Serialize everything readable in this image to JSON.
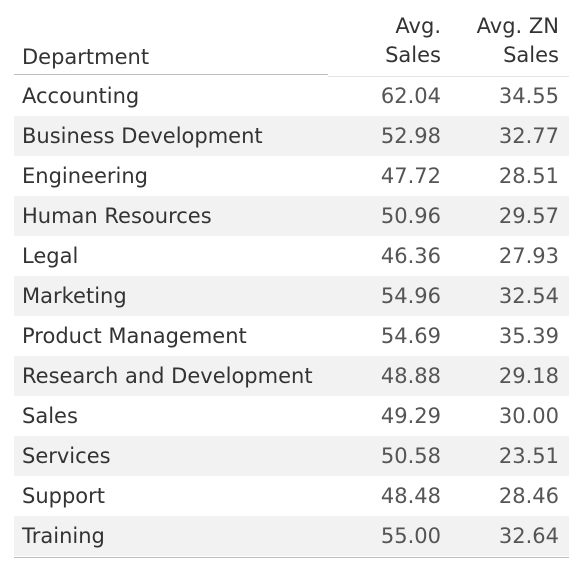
{
  "table": {
    "headers": {
      "department": "Department",
      "avg_sales_line1": "Avg.",
      "avg_sales_line2": "Sales",
      "avg_zn_sales_line1": "Avg. ZN",
      "avg_zn_sales_line2": "Sales"
    },
    "rows": [
      {
        "department": "Accounting",
        "avg_sales": "62.04",
        "avg_zn_sales": "34.55"
      },
      {
        "department": "Business Development",
        "avg_sales": "52.98",
        "avg_zn_sales": "32.77"
      },
      {
        "department": "Engineering",
        "avg_sales": "47.72",
        "avg_zn_sales": "28.51"
      },
      {
        "department": "Human Resources",
        "avg_sales": "50.96",
        "avg_zn_sales": "29.57"
      },
      {
        "department": "Legal",
        "avg_sales": "46.36",
        "avg_zn_sales": "27.93"
      },
      {
        "department": "Marketing",
        "avg_sales": "54.96",
        "avg_zn_sales": "32.54"
      },
      {
        "department": "Product Management",
        "avg_sales": "54.69",
        "avg_zn_sales": "35.39"
      },
      {
        "department": "Research and Development",
        "avg_sales": "48.88",
        "avg_zn_sales": "29.18"
      },
      {
        "department": "Sales",
        "avg_sales": "49.29",
        "avg_zn_sales": "30.00"
      },
      {
        "department": "Services",
        "avg_sales": "50.58",
        "avg_zn_sales": "23.51"
      },
      {
        "department": "Support",
        "avg_sales": "48.48",
        "avg_zn_sales": "28.46"
      },
      {
        "department": "Training",
        "avg_sales": "55.00",
        "avg_zn_sales": "32.64"
      }
    ]
  },
  "colors": {
    "text": "#333333",
    "number_text": "#555555",
    "band": "#f2f2f2",
    "rule": "#bdbdbd"
  }
}
